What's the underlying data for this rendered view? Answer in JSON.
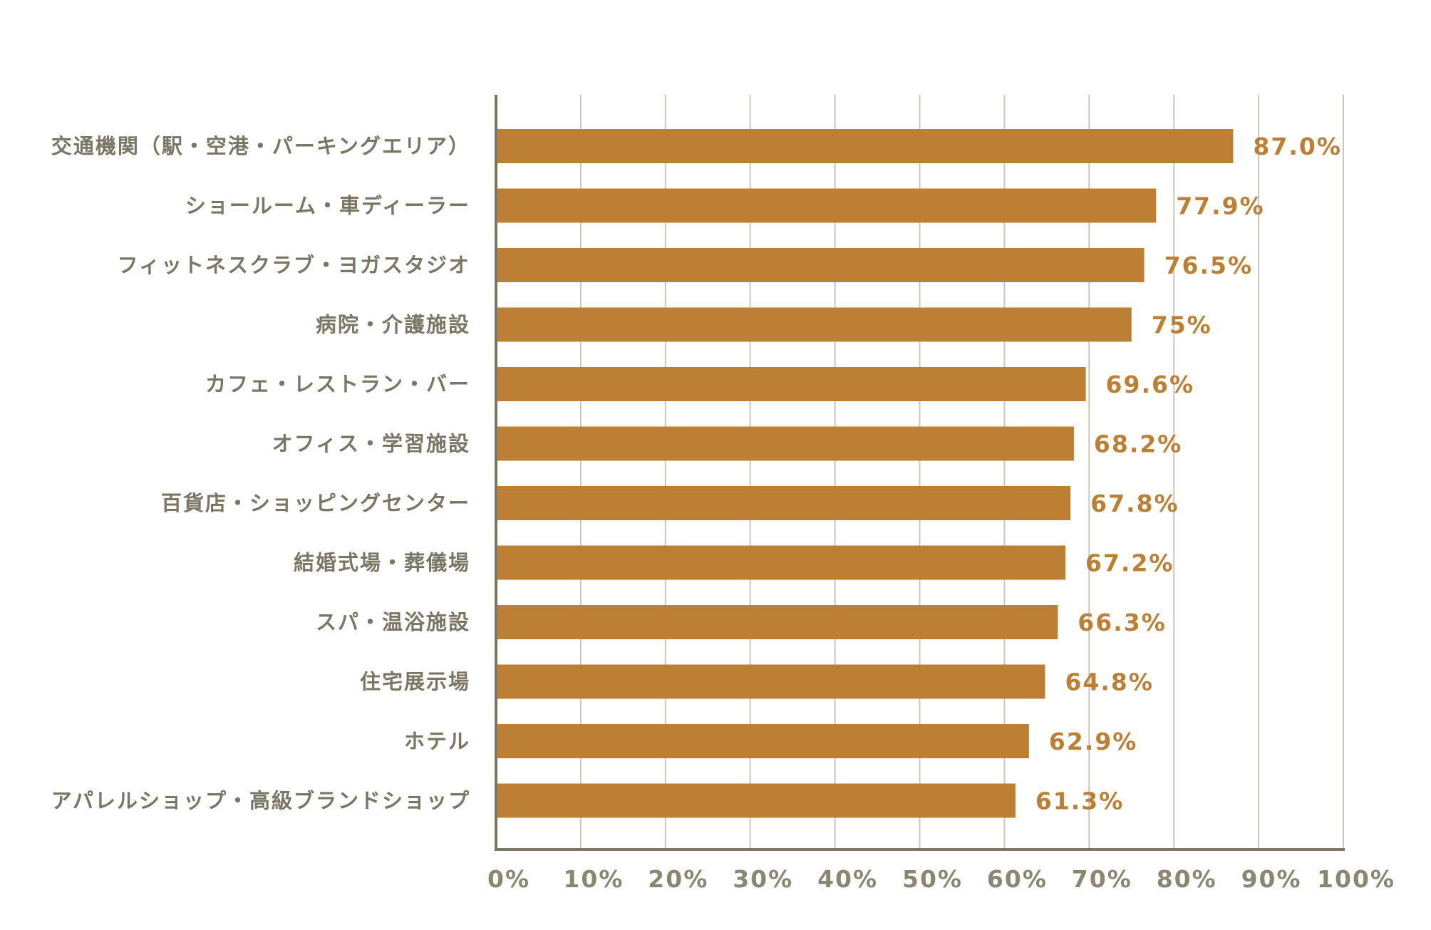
{
  "chart_data": {
    "type": "bar",
    "orientation": "horizontal",
    "title": "",
    "xlabel": "",
    "ylabel": "",
    "xlim": [
      0,
      100
    ],
    "grid": true,
    "colors": {
      "bar": "#bd7f33",
      "value_label": "#bd7f33",
      "category_label": "#7a7663",
      "axis": "#7a7663",
      "grid": "#c8c7c0",
      "tick_label": "#8a8670"
    },
    "x_ticks": [
      "0%",
      "10%",
      "20%",
      "30%",
      "40%",
      "50%",
      "60%",
      "70%",
      "80%",
      "90%",
      "100%"
    ],
    "categories": [
      "交通機関（駅・空港・パーキングエリア）",
      "ショールーム・車ディーラー",
      "フィットネスクラブ・ヨガスタジオ",
      "病院・介護施設",
      "カフェ・レストラン・バー",
      "オフィス・学習施設",
      "百貨店・ショッピングセンター",
      "結婚式場・葬儀場",
      "スパ・温浴施設",
      "住宅展示場",
      "ホテル",
      "アパレルショップ・高級ブランドショップ"
    ],
    "values": [
      87.0,
      77.9,
      76.5,
      75,
      69.6,
      68.2,
      67.8,
      67.2,
      66.3,
      64.8,
      62.9,
      61.3
    ],
    "value_labels": [
      "87.0%",
      "77.9%",
      "76.5%",
      "75%",
      "69.6%",
      "68.2%",
      "67.8%",
      "67.2%",
      "66.3%",
      "64.8%",
      "62.9%",
      "61.3%"
    ]
  }
}
